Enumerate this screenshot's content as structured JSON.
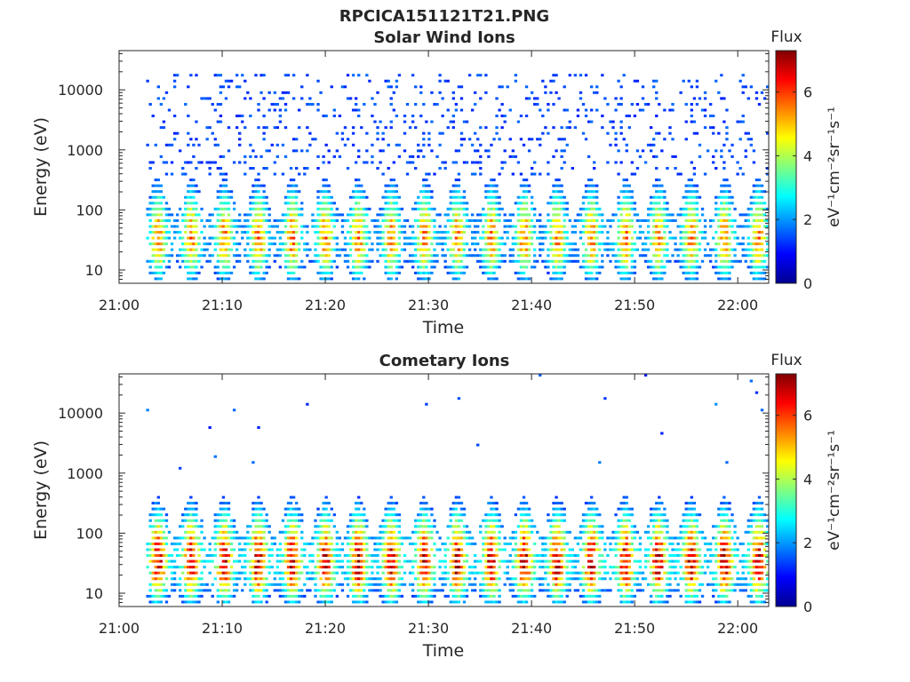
{
  "figure_title": "RPCICA151121T21.PNG",
  "colors": {
    "colormap": [
      "#00008f",
      "#0000ff",
      "#0080ff",
      "#00ffff",
      "#80ff80",
      "#ffff00",
      "#ff8000",
      "#ff0000",
      "#800000"
    ],
    "axis": "#262626",
    "background": "#ffffff"
  },
  "chart_data": [
    {
      "type": "heatmap",
      "title": "Solar Wind Ions",
      "xlabel": "Time",
      "ylabel": "Energy (eV)",
      "x_range": [
        "21:00",
        "22:03"
      ],
      "x_ticks": [
        "21:00",
        "21:10",
        "21:20",
        "21:30",
        "21:40",
        "21:50",
        "22:00"
      ],
      "y_scale": "log",
      "ylim": [
        6,
        45000
      ],
      "y_ticks": [
        {
          "value": 10,
          "label": "10"
        },
        {
          "value": 100,
          "label": "100"
        },
        {
          "value": 1000,
          "label": "1000"
        },
        {
          "value": 10000,
          "label": "10000"
        }
      ],
      "colorbar": {
        "title": "Flux",
        "label": "eV⁻¹cm⁻²sr⁻¹s⁻¹",
        "range": [
          0,
          7.3
        ],
        "ticks": [
          "0",
          "2",
          "4",
          "6"
        ]
      },
      "data_start_min": 2.5,
      "pulse_times_min": [
        3.8,
        7.0,
        10.2,
        13.5,
        16.8,
        20.0,
        23.2,
        26.4,
        29.6,
        32.8,
        36.1,
        39.3,
        42.5,
        45.8,
        49.1,
        52.3,
        55.5,
        58.7,
        62.0
      ],
      "peak_energy_eV": 30,
      "peak_flux_log10": 5.5,
      "background_energy_eV": [
        300,
        20000
      ],
      "background_flux_log10": 1.1
    },
    {
      "type": "heatmap",
      "title": "Cometary Ions",
      "xlabel": "Time",
      "ylabel": "Energy (eV)",
      "x_range": [
        "21:00",
        "22:03"
      ],
      "x_ticks": [
        "21:00",
        "21:10",
        "21:20",
        "21:30",
        "21:40",
        "21:50",
        "22:00"
      ],
      "y_scale": "log",
      "ylim": [
        6,
        45000
      ],
      "y_ticks": [
        {
          "value": 10,
          "label": "10"
        },
        {
          "value": 100,
          "label": "100"
        },
        {
          "value": 1000,
          "label": "1000"
        },
        {
          "value": 10000,
          "label": "10000"
        }
      ],
      "colorbar": {
        "title": "Flux",
        "label": "eV⁻¹cm⁻²sr⁻¹s⁻¹",
        "range": [
          0,
          7.3
        ],
        "ticks": [
          "0",
          "2",
          "4",
          "6"
        ]
      },
      "data_start_min": 2.5,
      "pulse_times_min": [
        3.8,
        7.0,
        10.2,
        13.5,
        16.8,
        20.0,
        23.2,
        26.4,
        29.6,
        32.8,
        36.1,
        39.3,
        42.5,
        45.8,
        49.1,
        52.3,
        55.5,
        58.7,
        62.0
      ],
      "peak_energy_eV": 30,
      "peak_flux_log10": 6.8,
      "background_energy_eV": [
        300,
        20000
      ],
      "background_flux_log10": 0.2
    }
  ]
}
